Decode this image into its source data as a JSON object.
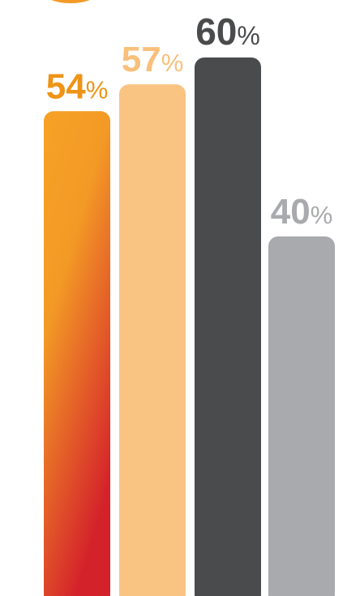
{
  "chart_data": {
    "type": "bar",
    "title": "",
    "xlabel": "",
    "ylabel": "",
    "ylim": [
      0,
      60
    ],
    "grid": false,
    "legend": "none",
    "categories": [
      "",
      "",
      "",
      ""
    ],
    "values": [
      54,
      57,
      60,
      40
    ],
    "labels": [
      {
        "value": "54",
        "unit": "%"
      },
      {
        "value": "57",
        "unit": "%"
      },
      {
        "value": "60",
        "unit": "%"
      },
      {
        "value": "40",
        "unit": "%"
      }
    ],
    "colors": [
      "#f39a26",
      "#f9c482",
      "#4a4b4d",
      "#a9aaad"
    ],
    "gradient_bottom": "#d52a2b",
    "label_colors": [
      "#ee9417",
      "#f8c07a",
      "#4a4b4d",
      "#a9aaad"
    ]
  }
}
